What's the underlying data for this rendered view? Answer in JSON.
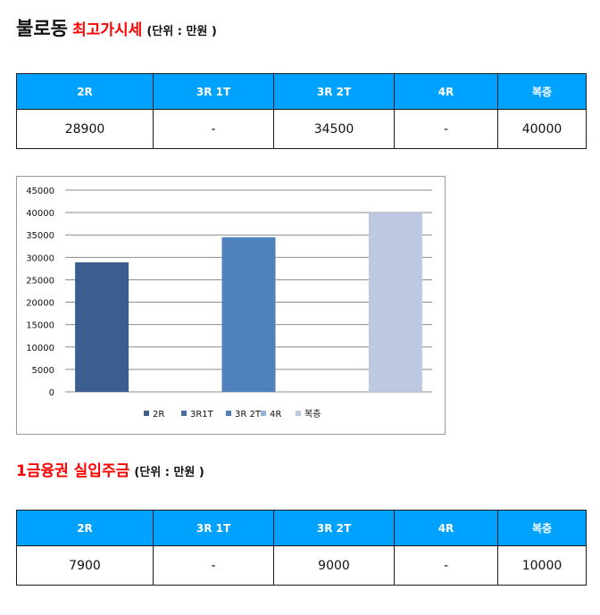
{
  "section1": {
    "title": "불로동",
    "subtitle": "최고가시세",
    "unit": "(단위 : 만원 )",
    "headers": [
      "2R",
      "3R 1T",
      "3R 2T",
      "4R",
      "복층"
    ],
    "values": [
      "28900",
      "-",
      "34500",
      "-",
      "40000"
    ]
  },
  "section2": {
    "title": "1금융권 실입주금",
    "unit": "(단위 : 만원 )",
    "headers": [
      "2R",
      "3R 1T",
      "3R 2T",
      "4R",
      "복층"
    ],
    "values": [
      "7900",
      "-",
      "9000",
      "-",
      "10000"
    ]
  },
  "colors": {
    "header_bg": "#00a2ff",
    "title_red": "#ff0000",
    "bar_2R": "#3a5f8f",
    "bar_3R1T": "#4a6fa5",
    "bar_3R2T": "#4f81bd",
    "bar_4R": "#95b3d7",
    "bar_duplex": "#bcc9e1"
  },
  "chart_data": {
    "type": "bar",
    "categories": [
      "2R",
      "3R1T",
      "3R 2T",
      "4R",
      "복층"
    ],
    "values": [
      28900,
      null,
      34500,
      null,
      40000
    ],
    "ylim": [
      0,
      45000
    ],
    "yticks": [
      "45000",
      "40000",
      "35000",
      "30000",
      "25000",
      "20000",
      "15000",
      "10000",
      "5000",
      "0"
    ],
    "legend": [
      "2R",
      "3R1T",
      "3R 2T",
      "4R",
      "복층"
    ],
    "legend_position": "bottom",
    "grid": true
  }
}
